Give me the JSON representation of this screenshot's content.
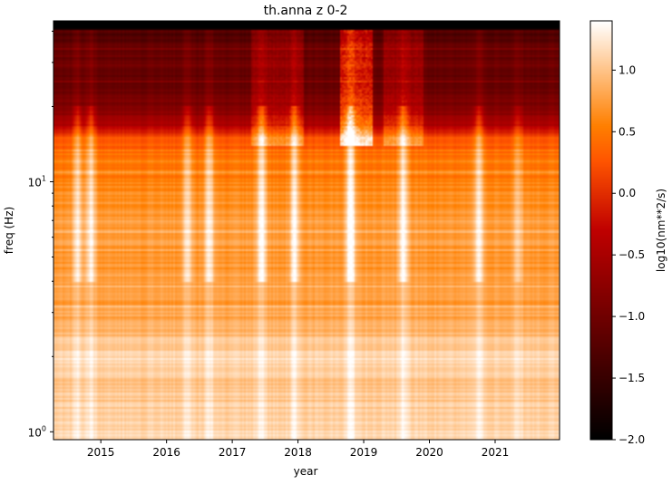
{
  "chart_data": {
    "type": "heatmap",
    "title": "th.anna z 0-2",
    "xlabel": "year",
    "ylabel": "freq (Hz)",
    "x_range": [
      2014.28,
      2021.98
    ],
    "y_range": [
      0.93,
      44
    ],
    "y_scale": "log",
    "x_ticks": [
      "2015",
      "2016",
      "2017",
      "2018",
      "2019",
      "2020",
      "2021"
    ],
    "y_ticks": [
      {
        "value": 1,
        "label": "10",
        "sup": "0"
      },
      {
        "value": 10,
        "label": "10",
        "sup": "1"
      }
    ],
    "colormap": "gist_heat",
    "colorbar": {
      "label": "log10(nm**2/s)",
      "range": [
        -2.0,
        1.4
      ],
      "ticks": [
        "1.0",
        "0.5",
        "0.0",
        "−0.5",
        "−1.0",
        "−1.5",
        "−2.0"
      ],
      "tick_values": [
        1.0,
        0.5,
        0.0,
        -0.5,
        -1.0,
        -1.5,
        -2.0
      ]
    },
    "frequency_profile": [
      {
        "f": 0.93,
        "v": 1.2
      },
      {
        "f": 1.2,
        "v": 1.05
      },
      {
        "f": 1.6,
        "v": 1.0
      },
      {
        "f": 2.0,
        "v": 1.15
      },
      {
        "f": 2.6,
        "v": 0.85
      },
      {
        "f": 3.5,
        "v": 0.72
      },
      {
        "f": 5.0,
        "v": 0.7
      },
      {
        "f": 7.0,
        "v": 0.75
      },
      {
        "f": 10,
        "v": 0.55
      },
      {
        "f": 13,
        "v": 0.42
      },
      {
        "f": 15,
        "v": 0.2
      },
      {
        "f": 17,
        "v": -0.5
      },
      {
        "f": 20,
        "v": -0.9
      },
      {
        "f": 25,
        "v": -1.1
      },
      {
        "f": 35,
        "v": -1.1
      },
      {
        "f": 40,
        "v": -1.35
      },
      {
        "f": 41,
        "v": -2.0
      },
      {
        "f": 44,
        "v": -2.0
      }
    ],
    "bright_epochs": [
      {
        "year": 2014.65,
        "strength": 0.55
      },
      {
        "year": 2014.85,
        "strength": 0.6
      },
      {
        "year": 2016.32,
        "strength": 0.5
      },
      {
        "year": 2016.65,
        "strength": 0.6
      },
      {
        "year": 2017.45,
        "strength": 0.75
      },
      {
        "year": 2017.95,
        "strength": 0.65
      },
      {
        "year": 2018.8,
        "strength": 0.85
      },
      {
        "year": 2019.6,
        "strength": 0.7
      },
      {
        "year": 2020.75,
        "strength": 0.6
      },
      {
        "year": 2021.35,
        "strength": 0.35
      }
    ],
    "high_freq_bursts": [
      {
        "from": 2017.3,
        "to": 2018.1,
        "strength": 0.45
      },
      {
        "from": 2018.65,
        "to": 2019.15,
        "strength": 1.1
      },
      {
        "from": 2019.3,
        "to": 2019.9,
        "strength": 0.5
      }
    ]
  }
}
